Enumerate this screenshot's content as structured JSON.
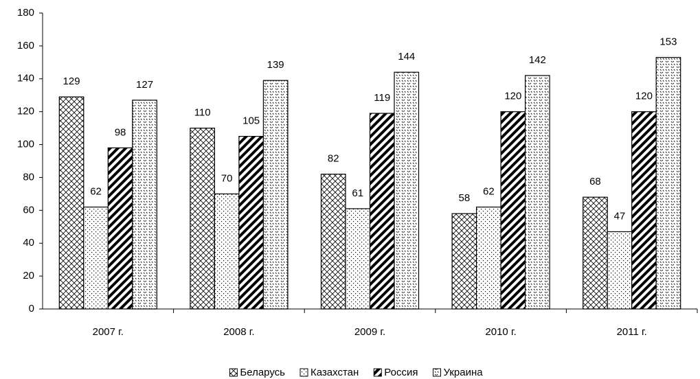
{
  "chart_data": {
    "type": "bar",
    "categories": [
      "2007 г.",
      "2008 г.",
      "2009 г.",
      "2010 г.",
      "2011 г."
    ],
    "series": [
      {
        "name": "Беларусь",
        "color": "#000000",
        "pattern": "crosshatch",
        "values": [
          129,
          110,
          82,
          58,
          68
        ]
      },
      {
        "name": "Казахстан",
        "color": "#000000",
        "pattern": "dots",
        "values": [
          62,
          70,
          61,
          62,
          47
        ]
      },
      {
        "name": "Россия",
        "color": "#000000",
        "pattern": "stripes",
        "values": [
          98,
          105,
          119,
          120,
          120
        ]
      },
      {
        "name": "Украина",
        "color": "#000000",
        "pattern": "dashes",
        "values": [
          127,
          139,
          144,
          142,
          153
        ]
      }
    ],
    "ylim": [
      0,
      180
    ],
    "yticks": [
      0,
      20,
      40,
      60,
      80,
      100,
      120,
      140,
      160,
      180
    ],
    "grid": false,
    "legend": "bottom",
    "data_labels": true
  }
}
